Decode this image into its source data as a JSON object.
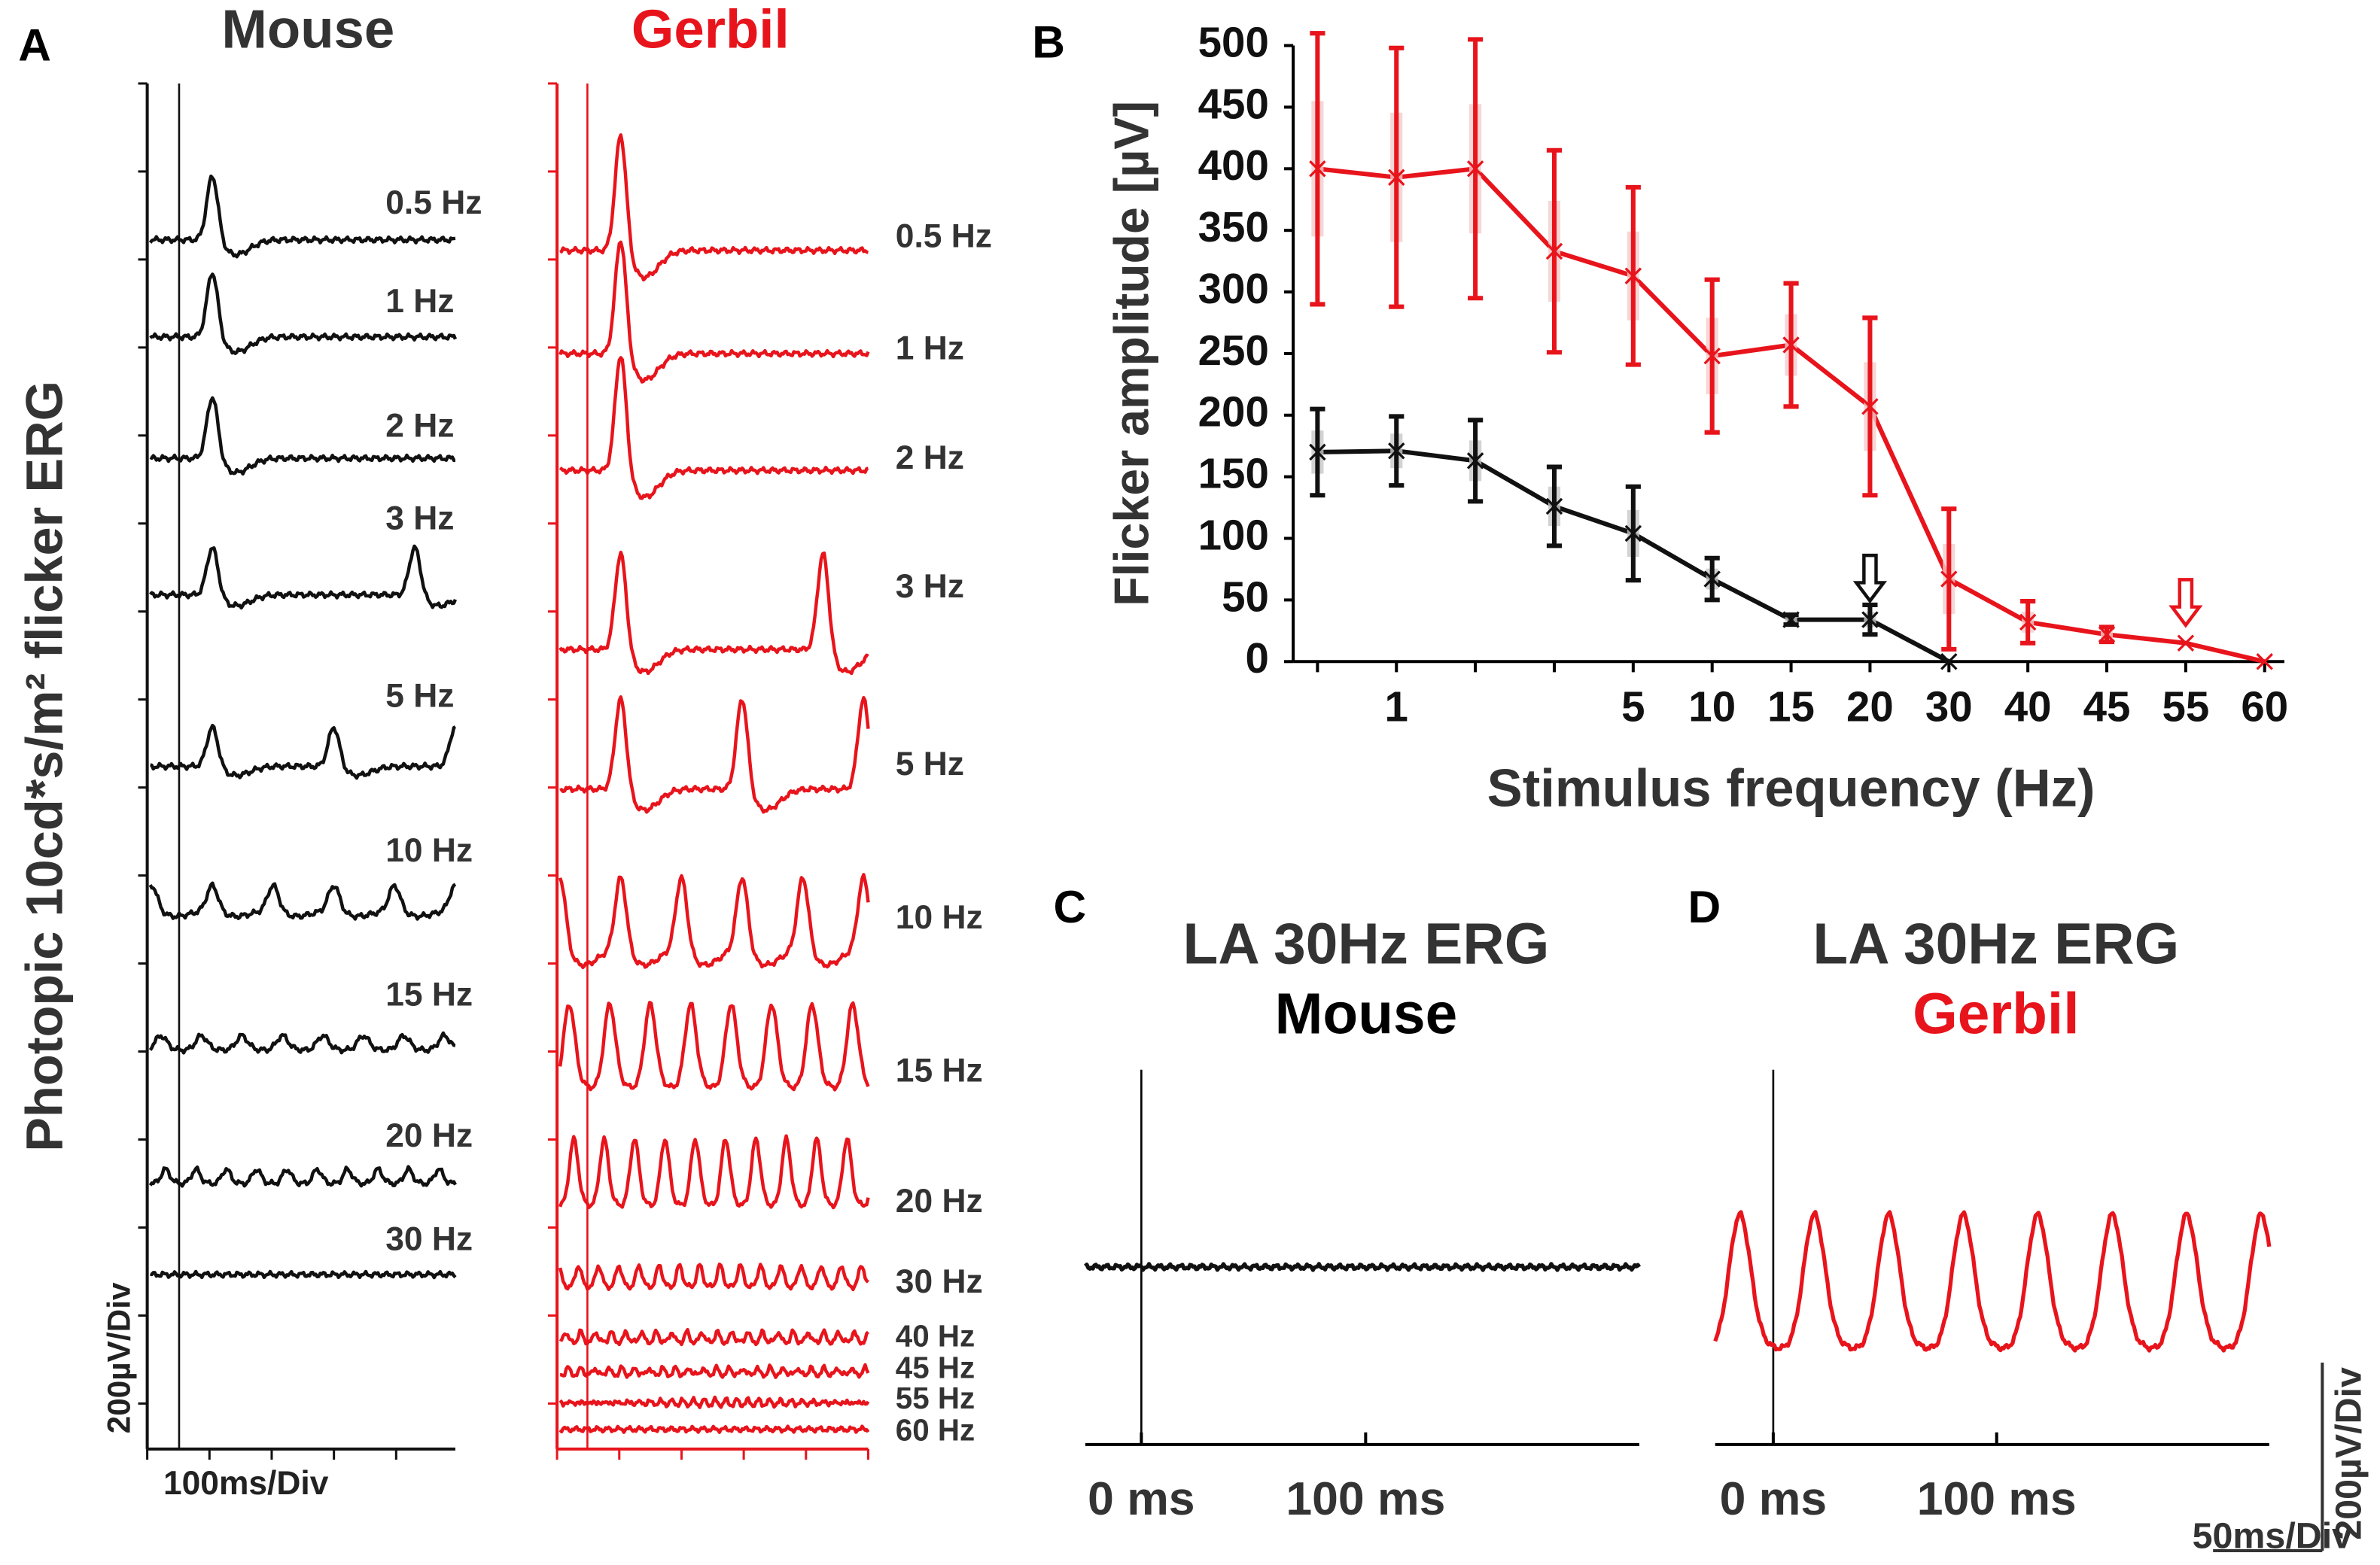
{
  "chart_data": [
    {
      "type": "traces",
      "panel": "A",
      "ylabel": "Photopic 10cd*s/m² flicker ERG",
      "scale_labels": [
        "200µV/Div",
        "100ms/Div"
      ],
      "series": [
        {
          "name": "Mouse",
          "color": "#111111",
          "labels": [
            "0.5 Hz",
            "1 Hz",
            "2 Hz",
            "3 Hz",
            "5 Hz",
            "10 Hz",
            "15 Hz",
            "20 Hz",
            "30 Hz"
          ]
        },
        {
          "name": "Gerbil",
          "color": "#e8141c",
          "labels": [
            "0.5 Hz",
            "1 Hz",
            "2 Hz",
            "3 Hz",
            "5 Hz",
            "10 Hz",
            "15 Hz",
            "20 Hz",
            "30 Hz",
            "40 Hz",
            "45 Hz",
            "55 Hz",
            "60 Hz"
          ]
        }
      ]
    },
    {
      "type": "line",
      "panel": "B",
      "xlabel": "Stimulus frequency (Hz)",
      "ylabel": "Flicker amplitude [µV]",
      "categories": [
        null,
        "1",
        null,
        null,
        "5",
        "10",
        "15",
        "20",
        "30",
        "40",
        "45",
        "55",
        "60"
      ],
      "ylim": [
        0,
        500
      ],
      "yticks": [
        0,
        50,
        100,
        150,
        200,
        250,
        300,
        350,
        400,
        450,
        500
      ],
      "series": [
        {
          "color": "#e8141c",
          "values": [
            400,
            393,
            400,
            333,
            313,
            248,
            257,
            207,
            67,
            32,
            22,
            15,
            0
          ],
          "errors": [
            110,
            105,
            105,
            82,
            72,
            62,
            50,
            72,
            57,
            17,
            6,
            null,
            null
          ]
        },
        {
          "color": "#111111",
          "values": [
            170,
            171,
            163,
            126,
            104,
            67,
            34,
            34,
            0,
            null,
            null,
            null,
            null
          ],
          "errors": [
            35,
            28,
            33,
            32,
            38,
            17,
            4,
            12,
            null,
            null,
            null,
            null,
            null
          ]
        }
      ]
    },
    {
      "type": "traces",
      "panel": "C",
      "title": "LA 30Hz ERG",
      "subtitle": "Mouse",
      "color": "#111111",
      "xlim": [
        -25,
        222
      ],
      "xticks": [
        {
          "value": 0,
          "label": "0 ms"
        },
        {
          "value": 100,
          "label": "100 ms"
        }
      ]
    },
    {
      "type": "traces",
      "panel": "D",
      "title": "LA 30Hz ERG",
      "subtitle": "Gerbil",
      "color": "#e8141c",
      "xlim": [
        -26,
        222
      ],
      "xticks": [
        {
          "value": 0,
          "label": "0 ms"
        },
        {
          "value": 100,
          "label": "100 ms"
        }
      ],
      "scale_labels": [
        "50ms/Div",
        "200µV/Div"
      ]
    }
  ]
}
